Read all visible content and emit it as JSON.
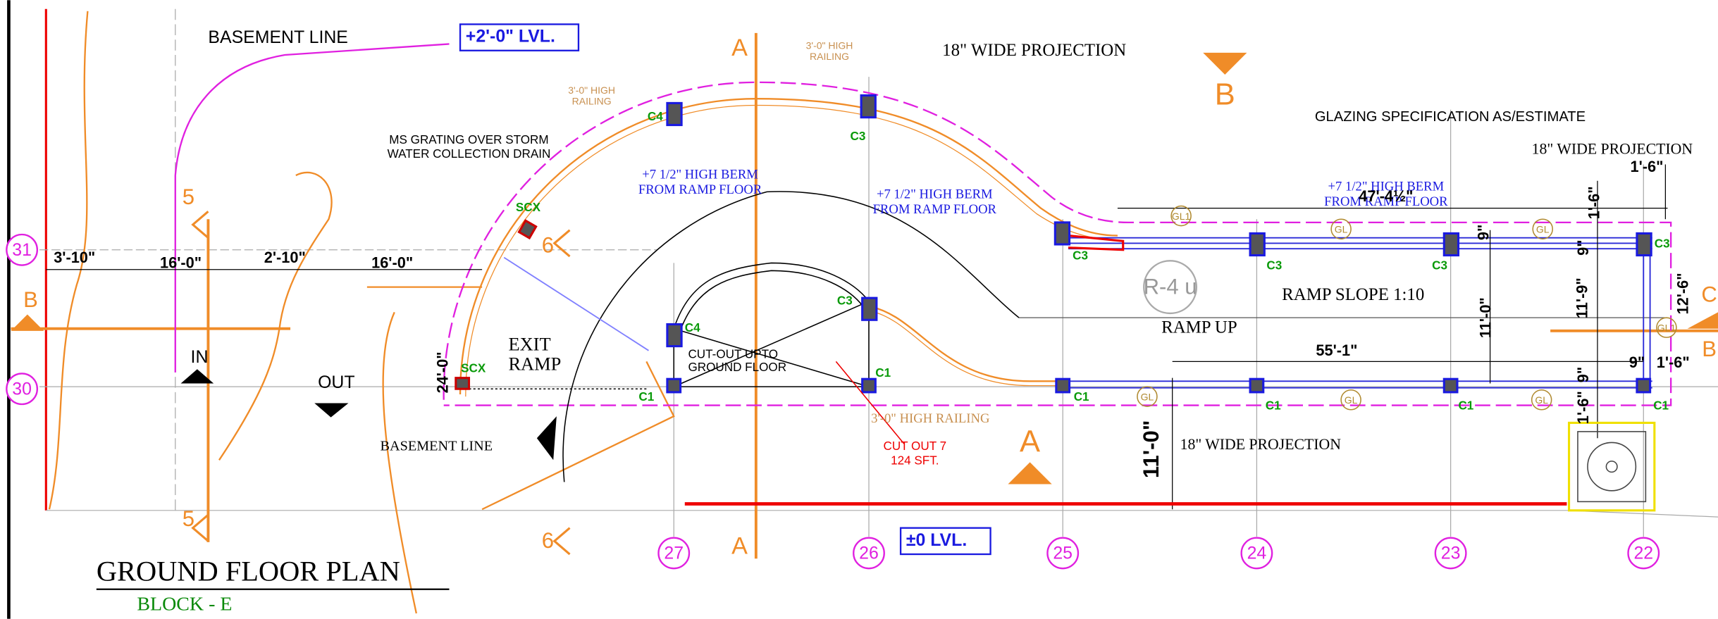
{
  "title": "GROUND FLOOR PLAN",
  "subtitle": "BLOCK - E",
  "levels": [
    "+2'-0\" LVL.",
    "±0 LVL."
  ],
  "grid_bubbles": [
    "31",
    "30",
    "27",
    "26",
    "25",
    "24",
    "23",
    "22"
  ],
  "section_marks": [
    "A",
    "A",
    "A",
    "B",
    "B",
    "B",
    "C",
    "5",
    "5",
    "6",
    "6"
  ],
  "notes": {
    "basement_line_top": "BASEMENT LINE",
    "basement_line_bottom": "BASEMENT LINE",
    "railing_top": [
      "3'-0\" HIGH",
      "RAILING"
    ],
    "railing_left": [
      "3'-0\" HIGH",
      "RAILING"
    ],
    "railing_bottom": "3'-0\" HIGH RAILING",
    "projection_top": "18\" WIDE PROJECTION",
    "projection_right": "18\" WIDE PROJECTION",
    "projection_bottom": "18\" WIDE PROJECTION",
    "glazing": "GLAZING SPECIFICATION AS/ESTIMATE",
    "grating": [
      "MS GRATING OVER  STORM",
      "WATER COLLECTION DRAIN"
    ],
    "berm_1": [
      "+7 1/2\" HIGH BERM",
      "FROM RAMP FLOOR"
    ],
    "berm_2": [
      "+7 1/2\" HIGH BERM",
      "FROM RAMP FLOOR"
    ],
    "berm_3": [
      "+7 1/2\" HIGH BERM",
      "FROM RAMP FLOOR"
    ],
    "ramp_tag": "R-4 u",
    "ramp_slope": "RAMP SLOPE 1:10",
    "ramp_up": "RAMP UP",
    "exit_ramp": [
      "EXIT",
      "RAMP"
    ],
    "cutout": [
      "CUT-OUT UPTO",
      "GROUND FLOOR"
    ],
    "in": "IN",
    "out": "OUT",
    "cut_out_area": [
      "CUT OUT 7",
      "124 SFT."
    ]
  },
  "dimensions": [
    "3'-10\"",
    "16'-0\"",
    "2'-10\"",
    "16'-0\"",
    "47'-4½\"",
    "55'-1\"",
    "1'-6\"",
    "1'-6\"",
    "9\"",
    "9\"",
    "11'-0\"",
    "11'-9\"",
    "12'-6\"",
    "9\"",
    "1'-6\"",
    "9\"",
    "1'-6\"",
    "24'-0\"",
    "11'-0\""
  ],
  "column_tags": [
    "C4",
    "C3",
    "C3",
    "C3",
    "C3",
    "C3",
    "C3",
    "C4",
    "C1",
    "C1",
    "C1",
    "C1",
    "C1",
    "C1",
    "SCX",
    "SCX"
  ],
  "glazing_tags": [
    "GL1",
    "GL",
    "GL",
    "GL1",
    "GL",
    "GL",
    "GL"
  ]
}
